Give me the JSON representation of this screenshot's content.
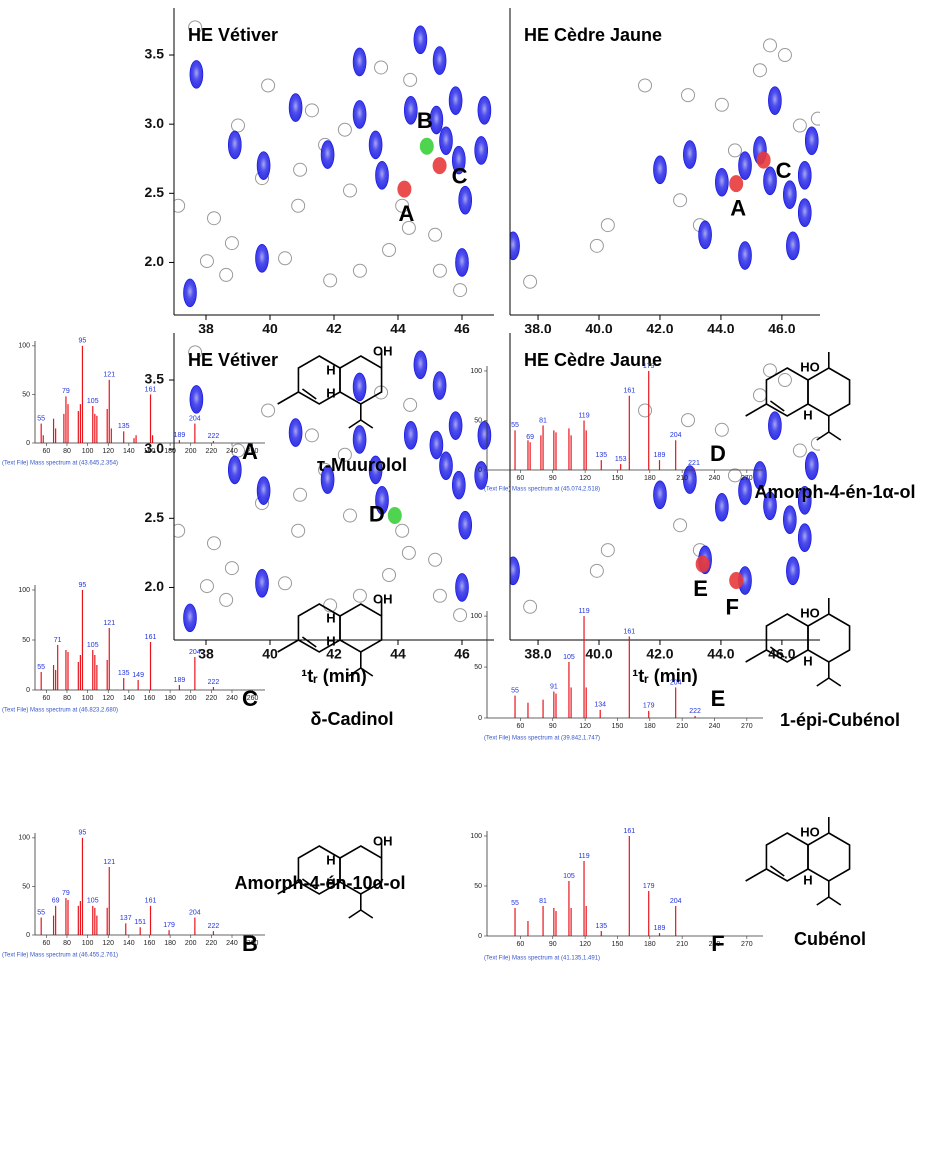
{
  "chart_data": [
    {
      "type": "contour",
      "title": "HE Vétiver",
      "xlim": [
        37,
        47
      ],
      "ylim": [
        1.62,
        3.84
      ],
      "xticks": [
        38,
        40,
        42,
        44,
        46
      ],
      "yticks": [
        2.0,
        2.5,
        3.0,
        3.5
      ],
      "blob_color": "#1010e0",
      "blobs": {
        "x": [
          37.7,
          38.9,
          39.8,
          39.75,
          40.8,
          41.8,
          42.8,
          42.8,
          43.3,
          43.5,
          44.4,
          44.7,
          45.2,
          45.3,
          45.8,
          45.9,
          46.1,
          46.6,
          46.0,
          37.5,
          46.7,
          45.5
        ],
        "y": [
          3.36,
          2.85,
          2.7,
          2.03,
          3.12,
          2.78,
          3.45,
          3.07,
          2.85,
          2.63,
          3.1,
          3.61,
          3.03,
          3.46,
          3.17,
          2.74,
          2.45,
          2.81,
          2.0,
          1.78,
          3.1,
          2.88
        ]
      },
      "circles": {
        "x": [
          37.66,
          39.0,
          38.25,
          38.81,
          39.75,
          40.88,
          41.31,
          41.72,
          42.34,
          42.5,
          43.47,
          44.13,
          44.34,
          45.16,
          45.31,
          45.94,
          38.03,
          38.63,
          39.94,
          40.47,
          41.88,
          42.81,
          37.13,
          40.94,
          43.72,
          44.38
        ],
        "y": [
          3.7,
          2.99,
          2.32,
          2.14,
          2.61,
          2.41,
          3.1,
          2.85,
          2.96,
          2.52,
          3.41,
          2.41,
          2.25,
          2.2,
          1.94,
          1.8,
          2.01,
          1.91,
          3.28,
          2.03,
          1.87,
          1.94,
          2.41,
          2.67,
          2.09,
          3.32
        ]
      },
      "markers": [
        {
          "label": "A",
          "x": 44.2,
          "y": 2.53,
          "color": "#e83a3a"
        },
        {
          "label": "B",
          "x": 44.9,
          "y": 2.84,
          "color": "#3ccf3c"
        },
        {
          "label": "C",
          "x": 45.3,
          "y": 2.7,
          "color": "#e83a3a"
        }
      ]
    },
    {
      "type": "contour",
      "title": "HE Cèdre Jaune",
      "xlim": [
        37.08,
        47.25
      ],
      "ylim": [
        1.62,
        3.84
      ],
      "xticks": [
        {
          "value": 38,
          "label": "38.0"
        },
        {
          "value": 40,
          "label": "40.0"
        },
        {
          "value": 42,
          "label": "42.0"
        },
        {
          "value": 44,
          "label": "44.0"
        },
        {
          "value": 46,
          "label": "46.0"
        }
      ],
      "blob_color": "#1010e0",
      "blobs": {
        "x": [
          37.18,
          42.0,
          42.98,
          44.03,
          44.79,
          45.28,
          45.77,
          45.61,
          46.26,
          46.75,
          46.36,
          43.48,
          44.79,
          46.75,
          46.98
        ],
        "y": [
          2.12,
          2.67,
          2.78,
          2.58,
          2.7,
          2.81,
          3.17,
          2.59,
          2.49,
          2.63,
          2.12,
          2.2,
          2.05,
          2.36,
          2.88
        ]
      },
      "circles": {
        "x": [
          37.74,
          39.93,
          40.29,
          41.51,
          42.92,
          43.31,
          44.03,
          44.46,
          45.28,
          45.61,
          46.1,
          46.59,
          47.18,
          42.66
        ],
        "y": [
          1.86,
          2.12,
          2.27,
          3.28,
          3.21,
          2.27,
          3.14,
          2.81,
          3.39,
          3.57,
          3.5,
          2.99,
          3.04,
          2.45
        ]
      },
      "markers": [
        {
          "label": "A",
          "x": 44.5,
          "y": 2.57,
          "color": "#e83a3a"
        },
        {
          "label": "C",
          "x": 45.4,
          "y": 2.74,
          "color": "#e83a3a"
        }
      ]
    },
    {
      "type": "contour",
      "title": "HE Vétiver",
      "xlabel": "¹tᵣ (min)",
      "xlim": [
        37,
        47
      ],
      "ylim": [
        1.62,
        3.84
      ],
      "xticks": [
        38,
        40,
        42,
        44,
        46
      ],
      "yticks": [
        2.0,
        2.5,
        3.0,
        3.5
      ],
      "blob_color": "#1010e0",
      "blobs": {
        "x": [
          37.7,
          38.9,
          39.8,
          39.75,
          40.8,
          41.8,
          42.8,
          42.8,
          43.3,
          43.5,
          44.4,
          44.7,
          45.2,
          45.3,
          45.8,
          45.9,
          46.1,
          46.6,
          46.0,
          37.5,
          46.7,
          45.5
        ],
        "y": [
          3.36,
          2.85,
          2.7,
          2.03,
          3.12,
          2.78,
          3.45,
          3.07,
          2.85,
          2.63,
          3.1,
          3.61,
          3.03,
          3.46,
          3.17,
          2.74,
          2.45,
          2.81,
          2.0,
          1.78,
          3.1,
          2.88
        ]
      },
      "circles": {
        "x": [
          37.66,
          39.0,
          38.25,
          38.81,
          39.75,
          40.88,
          41.31,
          41.72,
          42.34,
          42.5,
          43.47,
          44.13,
          44.34,
          45.16,
          45.31,
          45.94,
          38.03,
          38.63,
          39.94,
          40.47,
          41.88,
          42.81,
          37.13,
          40.94,
          43.72,
          44.38
        ],
        "y": [
          3.7,
          2.99,
          2.32,
          2.14,
          2.61,
          2.41,
          3.1,
          2.85,
          2.96,
          2.52,
          3.41,
          2.41,
          2.25,
          2.2,
          1.94,
          1.8,
          2.01,
          1.91,
          3.28,
          2.03,
          1.87,
          1.94,
          2.41,
          2.67,
          2.09,
          3.32
        ]
      },
      "markers": [
        {
          "label": "D",
          "x": 43.9,
          "y": 2.52,
          "color": "#3ccf3c"
        }
      ]
    },
    {
      "type": "contour",
      "title": "HE Cèdre Jaune",
      "xlabel": "¹tᵣ (min)",
      "xlim": [
        37.08,
        47.25
      ],
      "ylim": [
        1.62,
        3.84
      ],
      "xticks": [
        {
          "value": 38,
          "label": "38.0"
        },
        {
          "value": 40,
          "label": "40.0"
        },
        {
          "value": 42,
          "label": "42.0"
        },
        {
          "value": 44,
          "label": "44.0"
        },
        {
          "value": 46,
          "label": "46.0"
        }
      ],
      "blob_color": "#1010e0",
      "blobs": {
        "x": [
          37.18,
          42.0,
          42.98,
          44.03,
          44.79,
          45.28,
          45.77,
          45.61,
          46.26,
          46.75,
          46.36,
          43.48,
          44.79,
          46.75,
          46.98
        ],
        "y": [
          2.12,
          2.67,
          2.78,
          2.58,
          2.7,
          2.81,
          3.17,
          2.59,
          2.49,
          2.63,
          2.12,
          2.2,
          2.05,
          2.36,
          2.88
        ]
      },
      "circles": {
        "x": [
          37.74,
          39.93,
          40.29,
          41.51,
          42.92,
          43.31,
          44.03,
          44.46,
          45.28,
          45.61,
          46.1,
          46.59,
          47.18,
          42.66
        ],
        "y": [
          1.86,
          2.12,
          2.27,
          3.28,
          3.21,
          2.27,
          3.14,
          2.81,
          3.39,
          3.57,
          3.5,
          2.99,
          3.04,
          2.45
        ]
      },
      "markers": [
        {
          "label": "E",
          "x": 43.4,
          "y": 2.17,
          "color": "#e83a3a"
        },
        {
          "label": "F",
          "x": 44.5,
          "y": 2.05,
          "color": "#e83a3a"
        }
      ]
    },
    {
      "type": "mass_spectrum",
      "letter": "A",
      "compound": "τ-Muurolol",
      "structure_labels": [
        "H",
        "OH",
        "H"
      ],
      "footer": "(Text File) Mass spectrum at (43.645,2.354)",
      "color": "#e8141c",
      "xlim": [
        49,
        272
      ],
      "ylim": [
        0,
        105
      ],
      "xticks": [
        60,
        80,
        100,
        120,
        140,
        160,
        180,
        200,
        220,
        240,
        260
      ],
      "yticks": [
        0,
        50,
        100
      ],
      "x": [
        55,
        57,
        67,
        69,
        77,
        79,
        81,
        91,
        93,
        95,
        105,
        107,
        109,
        119,
        121,
        123,
        135,
        145,
        147,
        161,
        163,
        189,
        204,
        222
      ],
      "values": [
        20,
        8,
        25,
        15,
        30,
        48,
        40,
        33,
        40,
        100,
        38,
        30,
        28,
        35,
        65,
        15,
        12,
        5,
        8,
        50,
        8,
        3,
        20,
        2
      ],
      "labels": [
        55,
        null,
        null,
        null,
        null,
        79,
        null,
        null,
        null,
        95,
        105,
        null,
        null,
        null,
        121,
        null,
        135,
        null,
        null,
        161,
        null,
        189,
        204,
        222
      ]
    },
    {
      "type": "mass_spectrum",
      "letter": "C",
      "compound": "δ-Cadinol",
      "structure_labels": [
        "H",
        "OH",
        "H"
      ],
      "footer": "(Text File) Mass spectrum at (46.823,2.680)",
      "color": "#e8141c",
      "xlim": [
        49,
        272
      ],
      "ylim": [
        0,
        105
      ],
      "xticks": [
        60,
        80,
        100,
        120,
        140,
        160,
        180,
        200,
        220,
        240,
        260
      ],
      "yticks": [
        0,
        50,
        100
      ],
      "x": [
        55,
        67,
        69,
        71,
        79,
        81,
        91,
        93,
        95,
        105,
        107,
        109,
        119,
        121,
        135,
        149,
        161,
        189,
        204,
        222
      ],
      "values": [
        18,
        25,
        20,
        45,
        40,
        38,
        28,
        35,
        100,
        40,
        35,
        25,
        30,
        62,
        12,
        10,
        48,
        5,
        33,
        3
      ],
      "labels": [
        55,
        null,
        null,
        71,
        null,
        null,
        null,
        null,
        95,
        105,
        null,
        null,
        null,
        121,
        135,
        149,
        161,
        189,
        204,
        222
      ]
    },
    {
      "type": "mass_spectrum",
      "letter": "B",
      "compound": "Amorph-4-én-10α-ol",
      "structure_labels": [
        "H",
        "OH",
        "H"
      ],
      "footer": "(Text File) Mass spectrum at (46.455,2.761)",
      "color": "#e8141c",
      "xlim": [
        49,
        272
      ],
      "ylim": [
        0,
        105
      ],
      "xticks": [
        60,
        80,
        100,
        120,
        140,
        160,
        180,
        200,
        220,
        240,
        260
      ],
      "yticks": [
        0,
        50,
        100
      ],
      "x": [
        55,
        67,
        69,
        79,
        81,
        91,
        93,
        95,
        105,
        107,
        109,
        119,
        121,
        137,
        151,
        161,
        179,
        204,
        222
      ],
      "values": [
        18,
        20,
        30,
        38,
        36,
        30,
        35,
        100,
        30,
        28,
        20,
        28,
        70,
        12,
        8,
        30,
        5,
        18,
        4
      ],
      "labels": [
        55,
        null,
        69,
        79,
        null,
        null,
        null,
        95,
        105,
        null,
        null,
        null,
        121,
        137,
        151,
        161,
        179,
        204,
        222
      ]
    },
    {
      "type": "mass_spectrum",
      "letter": "D",
      "compound": "Amorph-4-én-1α-ol",
      "structure_labels": [
        "HO",
        "H"
      ],
      "footer": "(Text File) Mass spectrum at (45.074,2.518)",
      "color": "#e8141c",
      "xlim": [
        29,
        285
      ],
      "ylim": [
        0,
        105
      ],
      "xticks": [
        60,
        90,
        120,
        150,
        180,
        210,
        240,
        270
      ],
      "yticks": [
        0,
        50,
        100
      ],
      "x": [
        55,
        67,
        69,
        79,
        81,
        91,
        93,
        105,
        107,
        119,
        121,
        135,
        153,
        161,
        179,
        189,
        204,
        221
      ],
      "values": [
        40,
        30,
        28,
        35,
        45,
        40,
        38,
        42,
        35,
        50,
        40,
        10,
        6,
        75,
        100,
        10,
        30,
        2
      ],
      "labels": [
        55,
        null,
        69,
        null,
        81,
        null,
        null,
        null,
        null,
        119,
        null,
        135,
        153,
        161,
        179,
        189,
        204,
        221
      ]
    },
    {
      "type": "mass_spectrum",
      "letter": "E",
      "compound": "1-épi-Cubénol",
      "structure_labels": [
        "HO",
        "H"
      ],
      "footer": "(Text File) Mass spectrum at (39.842,1.747)",
      "color": "#e8141c",
      "xlim": [
        29,
        285
      ],
      "ylim": [
        0,
        105
      ],
      "xticks": [
        60,
        90,
        120,
        150,
        180,
        210,
        240,
        270
      ],
      "yticks": [
        0,
        50,
        100
      ],
      "x": [
        55,
        67,
        81,
        91,
        93,
        105,
        107,
        119,
        121,
        134,
        161,
        179,
        204,
        222
      ],
      "values": [
        22,
        15,
        18,
        26,
        24,
        55,
        30,
        100,
        30,
        8,
        80,
        7,
        30,
        2
      ],
      "labels": [
        55,
        null,
        null,
        91,
        null,
        105,
        null,
        119,
        null,
        134,
        161,
        179,
        204,
        222
      ]
    },
    {
      "type": "mass_spectrum",
      "letter": "F",
      "compound": "Cubénol",
      "structure_labels": [
        "HO",
        "H"
      ],
      "footer": "(Text File) Mass spectrum at (41.135,1.491)",
      "color": "#e8141c",
      "xlim": [
        29,
        285
      ],
      "ylim": [
        0,
        105
      ],
      "xticks": [
        60,
        90,
        120,
        150,
        180,
        210,
        240,
        270
      ],
      "yticks": [
        0,
        50,
        100
      ],
      "x": [
        55,
        67,
        81,
        91,
        93,
        105,
        107,
        119,
        121,
        135,
        161,
        179,
        189,
        204
      ],
      "values": [
        28,
        15,
        30,
        28,
        25,
        55,
        28,
        75,
        30,
        5,
        100,
        45,
        3,
        30
      ],
      "labels": [
        55,
        null,
        81,
        null,
        null,
        105,
        null,
        119,
        null,
        135,
        161,
        179,
        189,
        204
      ]
    }
  ]
}
